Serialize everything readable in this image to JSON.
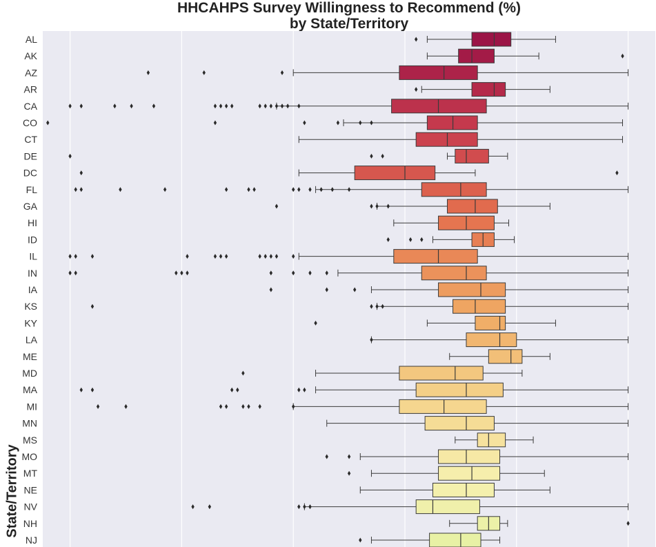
{
  "chart_data": {
    "type": "box",
    "orientation": "horizontal",
    "title": [
      "HHCAHPS Survey Willingness to Recommend (%)",
      "by State/Territory"
    ],
    "ylabel": "State/Territory",
    "xlabel": "",
    "xlim": [
      44.5,
      101
    ],
    "x_tick_labels_visible": false,
    "x_gridlines": [
      50,
      60,
      70,
      80,
      90,
      100
    ],
    "grid": true,
    "background": "#eaeaf2",
    "palette": "Spectral",
    "categories": [
      "AL",
      "AK",
      "AZ",
      "AR",
      "CA",
      "CO",
      "CT",
      "DE",
      "DC",
      "FL",
      "GA",
      "HI",
      "ID",
      "IL",
      "IN",
      "IA",
      "KS",
      "KY",
      "LA",
      "ME",
      "MD",
      "MA",
      "MI",
      "MN",
      "MS",
      "MO",
      "MT",
      "NE",
      "NV",
      "NH",
      "NJ"
    ],
    "boxes": [
      {
        "state": "AL",
        "whislo": 82,
        "q1": 86,
        "med": 88,
        "q3": 89.5,
        "whishi": 93.5,
        "fliers": [
          81
        ]
      },
      {
        "state": "AK",
        "whislo": 82,
        "q1": 84.8,
        "med": 86,
        "q3": 88,
        "whishi": 92,
        "fliers": [
          99.5
        ]
      },
      {
        "state": "AZ",
        "whislo": 70,
        "q1": 79.5,
        "med": 83.5,
        "q3": 86.5,
        "whishi": 100,
        "fliers": [
          57,
          62,
          69
        ]
      },
      {
        "state": "AR",
        "whislo": 81.5,
        "q1": 86,
        "med": 88,
        "q3": 89,
        "whishi": 93,
        "fliers": [
          81
        ]
      },
      {
        "state": "CA",
        "whislo": 68.5,
        "q1": 78.8,
        "med": 83,
        "q3": 87.3,
        "whishi": 100,
        "fliers": [
          50,
          51,
          54,
          55.5,
          57.5,
          63,
          63.5,
          64,
          64.5,
          67,
          67.5,
          68,
          68.5,
          69,
          69.5,
          70.5
        ]
      },
      {
        "state": "CO",
        "whislo": 74.5,
        "q1": 82,
        "med": 84.3,
        "q3": 86.5,
        "whishi": 99.5,
        "fliers": [
          48,
          63,
          71,
          74,
          76,
          77
        ]
      },
      {
        "state": "CT",
        "whislo": 70.5,
        "q1": 81,
        "med": 83.8,
        "q3": 86.5,
        "whishi": 99.5,
        "fliers": []
      },
      {
        "state": "DE",
        "whislo": 83.8,
        "q1": 84.5,
        "med": 85.5,
        "q3": 87.5,
        "whishi": 89.2,
        "fliers": [
          50,
          77,
          78
        ]
      },
      {
        "state": "DC",
        "whislo": 70.5,
        "q1": 75.5,
        "med": 80,
        "q3": 82.7,
        "whishi": 86.3,
        "fliers": [
          51,
          99
        ]
      },
      {
        "state": "FL",
        "whislo": 72,
        "q1": 81.5,
        "med": 85,
        "q3": 87.3,
        "whishi": 100,
        "fliers": [
          50.5,
          51,
          54.5,
          58.5,
          64,
          66,
          66.5,
          70,
          70.5,
          71.5,
          72.5,
          73.5,
          75
        ]
      },
      {
        "state": "GA",
        "whislo": 77.5,
        "q1": 83.8,
        "med": 86.3,
        "q3": 88.3,
        "whishi": 93,
        "fliers": [
          68.5,
          77,
          77.5,
          78.5
        ]
      },
      {
        "state": "HI",
        "whislo": 79,
        "q1": 83,
        "med": 85.5,
        "q3": 88,
        "whishi": 89.3,
        "fliers": []
      },
      {
        "state": "ID",
        "whislo": 82.5,
        "q1": 86,
        "med": 87,
        "q3": 88,
        "whishi": 89.8,
        "fliers": [
          78.5,
          80.5,
          81.5
        ]
      },
      {
        "state": "IL",
        "whislo": 70.5,
        "q1": 79,
        "med": 83,
        "q3": 86.5,
        "whishi": 100,
        "fliers": [
          50,
          50.5,
          52,
          60.5,
          63,
          63.5,
          64,
          67,
          67.5,
          68,
          68.5,
          70
        ]
      },
      {
        "state": "IN",
        "whislo": 74,
        "q1": 81.5,
        "med": 85.5,
        "q3": 87.3,
        "whishi": 100,
        "fliers": [
          50,
          50.5,
          59.5,
          60,
          60.5,
          68,
          70,
          71.5,
          73
        ]
      },
      {
        "state": "IA",
        "whislo": 77,
        "q1": 83,
        "med": 86.8,
        "q3": 89,
        "whishi": 100,
        "fliers": [
          68,
          73,
          75.5
        ]
      },
      {
        "state": "KS",
        "whislo": 77.5,
        "q1": 84.3,
        "med": 86.3,
        "q3": 89,
        "whishi": 100,
        "fliers": [
          52,
          77,
          77.5,
          78
        ]
      },
      {
        "state": "KY",
        "whislo": 82,
        "q1": 86.3,
        "med": 88.5,
        "q3": 89,
        "whishi": 93.5,
        "fliers": [
          72
        ]
      },
      {
        "state": "LA",
        "whislo": 77,
        "q1": 85.5,
        "med": 88.5,
        "q3": 90,
        "whishi": 100,
        "fliers": [
          77
        ]
      },
      {
        "state": "ME",
        "whislo": 84,
        "q1": 87.5,
        "med": 89.5,
        "q3": 90.5,
        "whishi": 93,
        "fliers": []
      },
      {
        "state": "MD",
        "whislo": 72,
        "q1": 79.5,
        "med": 84.5,
        "q3": 87,
        "whishi": 90.5,
        "fliers": [
          65.5
        ]
      },
      {
        "state": "MA",
        "whislo": 72,
        "q1": 81,
        "med": 85.5,
        "q3": 88.8,
        "whishi": 100,
        "fliers": [
          51,
          52,
          64.5,
          65,
          70.5,
          71
        ]
      },
      {
        "state": "MI",
        "whislo": 70,
        "q1": 79.5,
        "med": 83.5,
        "q3": 87.3,
        "whishi": 100,
        "fliers": [
          52.5,
          55,
          63.5,
          64,
          65.5,
          66,
          67,
          70
        ]
      },
      {
        "state": "MN",
        "whislo": 73,
        "q1": 81.8,
        "med": 85.5,
        "q3": 88,
        "whishi": 100,
        "fliers": []
      },
      {
        "state": "MS",
        "whislo": 84.5,
        "q1": 86.5,
        "med": 87.5,
        "q3": 89,
        "whishi": 91.5,
        "fliers": []
      },
      {
        "state": "MO",
        "whislo": 76,
        "q1": 83,
        "med": 85.5,
        "q3": 88.5,
        "whishi": 100,
        "fliers": [
          73,
          75
        ]
      },
      {
        "state": "MT",
        "whislo": 77,
        "q1": 83,
        "med": 86,
        "q3": 88.5,
        "whishi": 92.5,
        "fliers": [
          75
        ]
      },
      {
        "state": "NE",
        "whislo": 76,
        "q1": 82.5,
        "med": 85.5,
        "q3": 88,
        "whishi": 93,
        "fliers": []
      },
      {
        "state": "NV",
        "whislo": 71,
        "q1": 81,
        "med": 82.5,
        "q3": 86.7,
        "whishi": 100,
        "fliers": [
          61,
          62.5,
          70.5,
          71,
          71.5
        ]
      },
      {
        "state": "NH",
        "whislo": 84,
        "q1": 86.5,
        "med": 87.5,
        "q3": 88.5,
        "whishi": 89.2,
        "fliers": [
          100
        ]
      },
      {
        "state": "NJ",
        "whislo": 77,
        "q1": 82.2,
        "med": 85,
        "q3": 86.8,
        "whishi": 88.5,
        "fliers": [
          76
        ]
      }
    ]
  }
}
